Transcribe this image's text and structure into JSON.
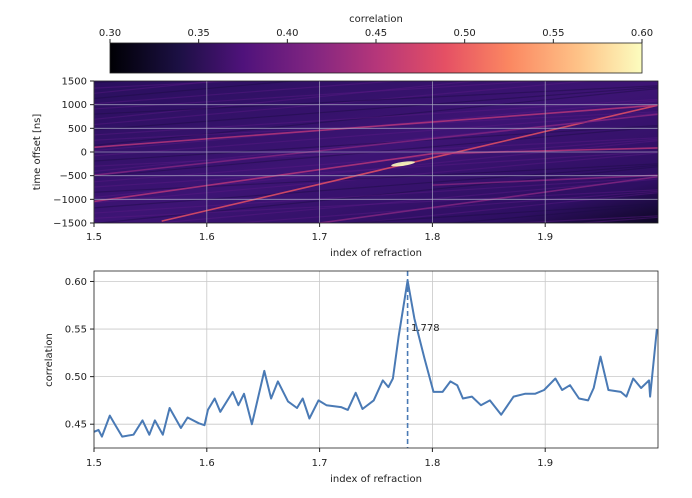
{
  "chart_data": [
    {
      "type": "heatmap",
      "colorbar": {
        "label": "correlation",
        "range": [
          0.3,
          0.6
        ],
        "ticks": [
          "0.30",
          "0.35",
          "0.40",
          "0.45",
          "0.50",
          "0.55",
          "0.60"
        ],
        "colormap": "magma"
      },
      "xlabel": "index of refraction",
      "ylabel": "time offset [ns]",
      "xlim": [
        1.5,
        2.0
      ],
      "ylim": [
        -1500,
        1500
      ],
      "xticks": [
        "1.5",
        "1.6",
        "1.7",
        "1.8",
        "1.9"
      ],
      "xtick_values": [
        1.5,
        1.6,
        1.7,
        1.8,
        1.9
      ],
      "yticks": [
        "1500",
        "1000",
        "500",
        "0",
        "−500",
        "−1000",
        "−1500"
      ],
      "ytick_values": [
        1500,
        1000,
        500,
        0,
        -500,
        -1000,
        -1500
      ],
      "background_value": 0.36,
      "streaks": [
        {
          "from": [
            1.56,
            -1460
          ],
          "to": [
            2.0,
            990
          ],
          "value": 0.5
        },
        {
          "from": [
            1.5,
            100
          ],
          "to": [
            2.0,
            990
          ],
          "value": 0.45
        },
        {
          "from": [
            1.5,
            -1045
          ],
          "to": [
            1.8,
            -35
          ],
          "value": 0.44
        },
        {
          "from": [
            1.8,
            -35
          ],
          "to": [
            2.0,
            85
          ],
          "value": 0.44
        },
        {
          "from": [
            1.5,
            -490
          ],
          "to": [
            2.0,
            800
          ],
          "value": 0.41
        },
        {
          "from": [
            1.7,
            -1500
          ],
          "to": [
            2.0,
            -520
          ],
          "value": 0.42
        },
        {
          "from": [
            1.8,
            -700
          ],
          "to": [
            2.0,
            -490
          ],
          "value": 0.42
        }
      ],
      "peak": {
        "x": 1.774,
        "y": -250,
        "value": 0.6
      }
    },
    {
      "type": "line",
      "xlabel": "index of refraction",
      "ylabel": "correlation",
      "xlim": [
        1.5,
        2.0
      ],
      "ylim": [
        0.425,
        0.611
      ],
      "xticks": [
        "1.5",
        "1.6",
        "1.7",
        "1.8",
        "1.9"
      ],
      "xtick_values": [
        1.5,
        1.6,
        1.7,
        1.8,
        1.9
      ],
      "yticks": [
        "0.60",
        "0.55",
        "0.50",
        "0.45"
      ],
      "ytick_values": [
        0.6,
        0.55,
        0.5,
        0.45
      ],
      "grid": true,
      "color": "#4a7ab5",
      "x": [
        1.5,
        1.504,
        1.507,
        1.514,
        1.519,
        1.525,
        1.535,
        1.543,
        1.549,
        1.554,
        1.561,
        1.567,
        1.577,
        1.583,
        1.593,
        1.598,
        1.601,
        1.607,
        1.612,
        1.623,
        1.628,
        1.633,
        1.64,
        1.651,
        1.657,
        1.663,
        1.672,
        1.68,
        1.685,
        1.691,
        1.699,
        1.706,
        1.719,
        1.725,
        1.732,
        1.738,
        1.748,
        1.756,
        1.761,
        1.765,
        1.77,
        1.778,
        1.784,
        1.793,
        1.801,
        1.809,
        1.816,
        1.822,
        1.827,
        1.835,
        1.843,
        1.851,
        1.861,
        1.872,
        1.882,
        1.891,
        1.899,
        1.909,
        1.915,
        1.922,
        1.93,
        1.938,
        1.943,
        1.949,
        1.956,
        1.967,
        1.972,
        1.978,
        1.985,
        1.992,
        1.993,
        1.999
      ],
      "y": [
        0.442,
        0.444,
        0.437,
        0.459,
        0.449,
        0.437,
        0.439,
        0.454,
        0.439,
        0.454,
        0.439,
        0.467,
        0.446,
        0.457,
        0.451,
        0.449,
        0.465,
        0.477,
        0.463,
        0.484,
        0.47,
        0.482,
        0.45,
        0.506,
        0.477,
        0.495,
        0.474,
        0.467,
        0.477,
        0.456,
        0.475,
        0.47,
        0.468,
        0.465,
        0.483,
        0.466,
        0.475,
        0.496,
        0.489,
        0.498,
        0.542,
        0.601,
        0.561,
        0.519,
        0.484,
        0.484,
        0.495,
        0.491,
        0.477,
        0.479,
        0.47,
        0.475,
        0.46,
        0.479,
        0.482,
        0.482,
        0.486,
        0.498,
        0.486,
        0.491,
        0.477,
        0.475,
        0.488,
        0.521,
        0.486,
        0.484,
        0.479,
        0.498,
        0.488,
        0.496,
        0.479,
        0.55
      ],
      "vline": {
        "x": 1.778,
        "style": "dashed"
      },
      "annotation": {
        "text": "1.778",
        "x": 1.781,
        "y": 0.545
      }
    }
  ]
}
